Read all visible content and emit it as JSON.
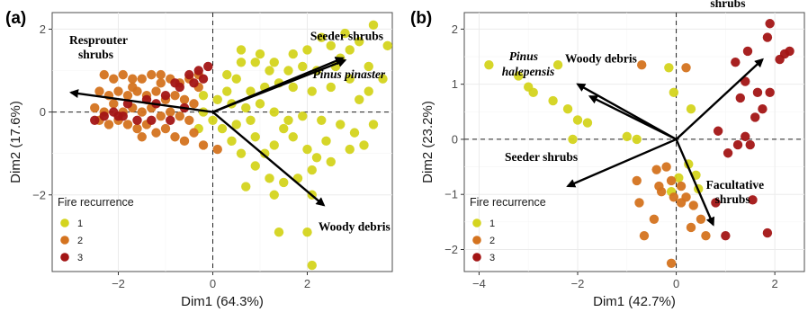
{
  "chart_data": [
    {
      "type": "scatter",
      "panel_label": "(a)",
      "xlabel": "Dim1 (64.3%)",
      "ylabel": "Dim2 (17.6%)",
      "xlim": [
        -3.4,
        3.8
      ],
      "ylim": [
        -3.85,
        2.4
      ],
      "xticks": [
        -2,
        0,
        2
      ],
      "yticks": [
        -2,
        0,
        2
      ],
      "grid": true,
      "zero_lines": true,
      "legend": {
        "title": "Fire recurrence",
        "position": "bottom-left",
        "entries": [
          "1",
          "2",
          "3"
        ]
      },
      "colors": {
        "1": "#d4d41e",
        "2": "#d4731f",
        "3": "#a31515"
      },
      "series": [
        {
          "name": "1",
          "points": [
            [
              3.4,
              2.1
            ],
            [
              3.7,
              1.6
            ],
            [
              2.8,
              1.9
            ],
            [
              3.1,
              1.7
            ],
            [
              2.5,
              1.6
            ],
            [
              2.3,
              1.8
            ],
            [
              2.0,
              1.5
            ],
            [
              1.7,
              1.4
            ],
            [
              1.3,
              1.2
            ],
            [
              0.9,
              1.2
            ],
            [
              0.6,
              1.2
            ],
            [
              1.2,
              1.0
            ],
            [
              1.6,
              1.0
            ],
            [
              1.9,
              1.1
            ],
            [
              2.2,
              1.0
            ],
            [
              2.7,
              1.3
            ],
            [
              2.9,
              0.8
            ],
            [
              3.1,
              0.3
            ],
            [
              3.3,
              0.5
            ],
            [
              3.6,
              0.8
            ],
            [
              2.5,
              0.6
            ],
            [
              2.1,
              0.5
            ],
            [
              1.7,
              0.6
            ],
            [
              1.4,
              0.7
            ],
            [
              1.1,
              0.6
            ],
            [
              0.8,
              0.5
            ],
            [
              0.5,
              0.8
            ],
            [
              0.3,
              0.5
            ],
            [
              0.1,
              0.3
            ],
            [
              -0.2,
              0.4
            ],
            [
              0.4,
              0.2
            ],
            [
              0.7,
              0.1
            ],
            [
              1.0,
              0.2
            ],
            [
              1.3,
              0.0
            ],
            [
              1.6,
              -0.2
            ],
            [
              1.9,
              -0.1
            ],
            [
              2.3,
              -0.2
            ],
            [
              2.7,
              -0.3
            ],
            [
              3.0,
              -0.5
            ],
            [
              3.2,
              -0.8
            ],
            [
              3.4,
              -0.3
            ],
            [
              2.9,
              -0.9
            ],
            [
              2.5,
              -1.2
            ],
            [
              2.1,
              -1.4
            ],
            [
              1.8,
              -1.6
            ],
            [
              1.5,
              -1.7
            ],
            [
              1.2,
              -1.6
            ],
            [
              0.9,
              -1.3
            ],
            [
              0.6,
              -1.0
            ],
            [
              0.4,
              -0.7
            ],
            [
              0.2,
              -0.4
            ],
            [
              0.5,
              -0.3
            ],
            [
              0.9,
              -0.6
            ],
            [
              1.3,
              -0.8
            ],
            [
              1.7,
              -0.6
            ],
            [
              2.0,
              -0.9
            ],
            [
              2.4,
              -0.7
            ],
            [
              1.1,
              -1.0
            ],
            [
              0.7,
              -1.8
            ],
            [
              1.3,
              -2.0
            ],
            [
              1.4,
              -2.9
            ],
            [
              2.1,
              -2.0
            ],
            [
              2.2,
              -1.1
            ],
            [
              2.0,
              -2.9
            ],
            [
              2.1,
              -3.7
            ],
            [
              1.5,
              -0.4
            ],
            [
              0.8,
              -0.2
            ],
            [
              0.0,
              -0.2
            ],
            [
              -0.3,
              -0.4
            ],
            [
              -0.2,
              0.0
            ],
            [
              0.3,
              0.9
            ],
            [
              0.6,
              1.5
            ],
            [
              1.0,
              1.4
            ],
            [
              2.6,
              1.1
            ],
            [
              2.9,
              1.5
            ],
            [
              3.3,
              1.1
            ]
          ]
        },
        {
          "name": "2",
          "points": [
            [
              -2.3,
              0.9
            ],
            [
              -2.1,
              0.8
            ],
            [
              -1.9,
              0.9
            ],
            [
              -1.7,
              0.8
            ],
            [
              -1.5,
              0.8
            ],
            [
              -1.3,
              0.9
            ],
            [
              -1.1,
              0.7
            ],
            [
              -0.9,
              0.8
            ],
            [
              -0.7,
              0.7
            ],
            [
              -0.5,
              0.8
            ],
            [
              -0.3,
              0.6
            ],
            [
              -2.4,
              0.5
            ],
            [
              -2.2,
              0.4
            ],
            [
              -2.0,
              0.5
            ],
            [
              -1.8,
              0.4
            ],
            [
              -1.6,
              0.5
            ],
            [
              -1.4,
              0.4
            ],
            [
              -1.2,
              0.5
            ],
            [
              -1.0,
              0.3
            ],
            [
              -0.8,
              0.4
            ],
            [
              -0.6,
              0.3
            ],
            [
              -0.4,
              0.2
            ],
            [
              -2.5,
              0.1
            ],
            [
              -2.3,
              0.0
            ],
            [
              -2.1,
              0.2
            ],
            [
              -1.9,
              0.0
            ],
            [
              -1.7,
              0.1
            ],
            [
              -1.5,
              0.0
            ],
            [
              -1.3,
              0.1
            ],
            [
              -1.1,
              -0.1
            ],
            [
              -0.9,
              0.0
            ],
            [
              -0.7,
              -0.1
            ],
            [
              -0.5,
              -0.2
            ],
            [
              -2.2,
              -0.3
            ],
            [
              -2.0,
              -0.2
            ],
            [
              -1.8,
              -0.3
            ],
            [
              -1.6,
              -0.4
            ],
            [
              -1.4,
              -0.3
            ],
            [
              -1.2,
              -0.5
            ],
            [
              -1.0,
              -0.4
            ],
            [
              -0.8,
              -0.6
            ],
            [
              -1.5,
              -0.6
            ],
            [
              -0.6,
              -0.7
            ],
            [
              -0.4,
              -0.5
            ],
            [
              -0.2,
              -0.8
            ],
            [
              0.1,
              -0.9
            ],
            [
              -1.7,
              0.6
            ],
            [
              -1.1,
              0.9
            ],
            [
              -0.3,
              0.9
            ],
            [
              -2.4,
              -0.2
            ]
          ]
        },
        {
          "name": "3",
          "points": [
            [
              -0.1,
              1.1
            ],
            [
              -0.3,
              1.0
            ],
            [
              -0.5,
              0.9
            ],
            [
              -0.8,
              0.7
            ],
            [
              -1.0,
              0.4
            ],
            [
              -1.4,
              0.3
            ],
            [
              -1.8,
              0.2
            ],
            [
              -2.1,
              0.0
            ],
            [
              -2.3,
              -0.1
            ],
            [
              -2.5,
              -0.2
            ],
            [
              -2.0,
              -0.1
            ],
            [
              -1.6,
              -0.2
            ],
            [
              -1.3,
              -0.2
            ],
            [
              -0.9,
              -0.2
            ],
            [
              -0.6,
              0.1
            ],
            [
              -0.4,
              0.7
            ],
            [
              -0.2,
              0.8
            ],
            [
              -1.2,
              0.2
            ],
            [
              -1.9,
              -0.1
            ],
            [
              -0.7,
              0.6
            ]
          ]
        }
      ],
      "vectors": [
        {
          "label": "Seeder shrubs",
          "x": 2.75,
          "y": 1.3
        },
        {
          "label": "Pinus pinaster",
          "x": 2.8,
          "y": 1.25
        },
        {
          "label": "Resprouter shrubs",
          "x": -3.0,
          "y": 0.47
        },
        {
          "label": "Woody debris",
          "x": 2.35,
          "y": -2.25
        }
      ]
    },
    {
      "type": "scatter",
      "panel_label": "(b)",
      "xlabel": "Dim1 (42.7%)",
      "ylabel": "Dim2 (23.2%)",
      "xlim": [
        -4.3,
        2.6
      ],
      "ylim": [
        -2.4,
        2.3
      ],
      "xticks": [
        -4,
        -2,
        0,
        2
      ],
      "yticks": [
        -2,
        -1,
        0,
        1,
        2
      ],
      "grid": true,
      "zero_lines": true,
      "legend": {
        "title": "Fire recurrence",
        "position": "bottom-left",
        "entries": [
          "1",
          "2",
          "3"
        ]
      },
      "colors": {
        "1": "#d4d41e",
        "2": "#d4731f",
        "3": "#a31515"
      },
      "series": [
        {
          "name": "1",
          "points": [
            [
              -3.8,
              1.35
            ],
            [
              -3.2,
              1.15
            ],
            [
              -3.0,
              0.95
            ],
            [
              -2.9,
              0.85
            ],
            [
              -2.5,
              0.7
            ],
            [
              -2.4,
              1.35
            ],
            [
              -2.2,
              0.55
            ],
            [
              -2.0,
              0.35
            ],
            [
              -1.8,
              0.3
            ],
            [
              -2.1,
              0.0
            ],
            [
              -1.0,
              0.05
            ],
            [
              -0.8,
              0.0
            ],
            [
              -0.05,
              0.85
            ],
            [
              0.3,
              0.55
            ],
            [
              -0.15,
              1.3
            ],
            [
              -0.1,
              -0.95
            ],
            [
              0.05,
              -0.7
            ],
            [
              0.4,
              -0.65
            ],
            [
              0.45,
              -0.9
            ],
            [
              0.25,
              -0.45
            ]
          ]
        },
        {
          "name": "2",
          "points": [
            [
              -0.7,
              1.35
            ],
            [
              0.2,
              1.3
            ],
            [
              -0.2,
              -0.5
            ],
            [
              -0.4,
              -0.55
            ],
            [
              -0.1,
              -0.75
            ],
            [
              0.1,
              -0.85
            ],
            [
              -0.3,
              -0.95
            ],
            [
              0.2,
              -1.05
            ],
            [
              0.35,
              -1.2
            ],
            [
              -0.05,
              -1.05
            ],
            [
              0.1,
              -1.15
            ],
            [
              -0.8,
              -0.75
            ],
            [
              -0.35,
              -0.85
            ],
            [
              -0.75,
              -1.15
            ],
            [
              -0.45,
              -1.45
            ],
            [
              0.5,
              -1.45
            ],
            [
              0.3,
              -1.6
            ],
            [
              0.6,
              -1.75
            ],
            [
              -0.65,
              -1.75
            ],
            [
              -0.1,
              -2.25
            ]
          ]
        },
        {
          "name": "3",
          "points": [
            [
              1.9,
              2.1
            ],
            [
              1.85,
              1.85
            ],
            [
              1.45,
              1.6
            ],
            [
              1.2,
              1.4
            ],
            [
              2.2,
              1.55
            ],
            [
              2.3,
              1.6
            ],
            [
              2.1,
              1.45
            ],
            [
              1.4,
              1.05
            ],
            [
              1.65,
              0.85
            ],
            [
              1.9,
              0.85
            ],
            [
              1.3,
              0.75
            ],
            [
              1.75,
              0.55
            ],
            [
              1.6,
              0.4
            ],
            [
              0.85,
              0.15
            ],
            [
              1.4,
              0.05
            ],
            [
              1.25,
              -0.1
            ],
            [
              1.5,
              -0.1
            ],
            [
              1.05,
              -0.25
            ],
            [
              1.55,
              -1.1
            ],
            [
              1.85,
              -1.7
            ],
            [
              1.0,
              -1.75
            ],
            [
              0.8,
              -1.15
            ]
          ]
        }
      ],
      "vectors": [
        {
          "label": "Woody debris",
          "x": -2.0,
          "y": 1.0
        },
        {
          "label": "Pinus halepensis",
          "x": -1.75,
          "y": 0.78
        },
        {
          "label": "Seeder shrubs",
          "x": -2.2,
          "y": -0.85
        },
        {
          "label": "Resprouter shrubs",
          "x": 1.75,
          "y": 1.45
        },
        {
          "label": "Facultative shrubs",
          "x": 0.75,
          "y": -1.55
        }
      ]
    }
  ]
}
